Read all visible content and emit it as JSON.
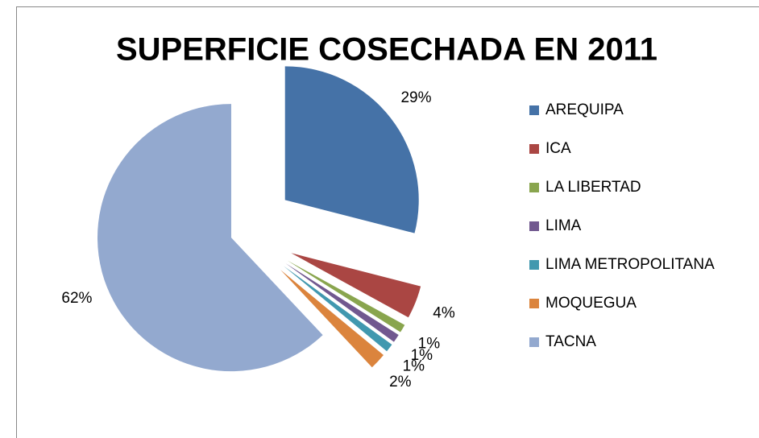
{
  "chart_data": {
    "type": "pie",
    "title": "SUPERFICIE COSECHADA EN 2011",
    "categories": [
      "AREQUIPA",
      "ICA",
      "LA LIBERTAD",
      "LIMA",
      "LIMA METROPOLITANA",
      "MOQUEGUA",
      "TACNA"
    ],
    "values": [
      29,
      4,
      1,
      1,
      1,
      2,
      62
    ],
    "value_labels": [
      "29%",
      "4%",
      "1%",
      "1%",
      "1%",
      "2%",
      "62%"
    ],
    "colors": [
      "#4572a7",
      "#aa4643",
      "#89a54e",
      "#71588f",
      "#4198af",
      "#db843d",
      "#93a9cf"
    ],
    "legend": "right"
  }
}
